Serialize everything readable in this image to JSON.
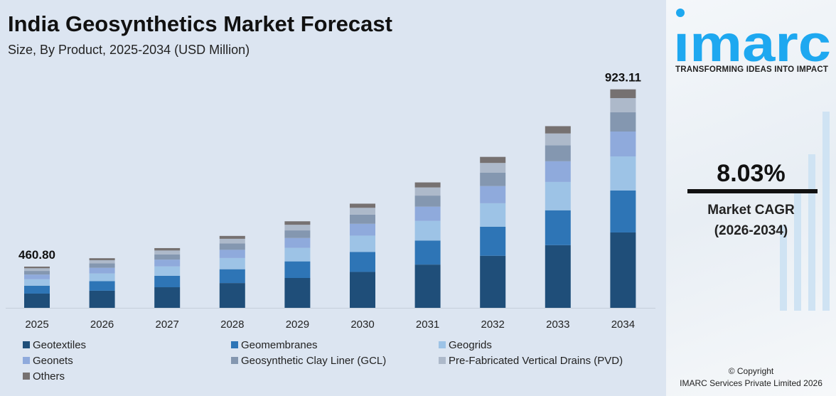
{
  "chart_data": {
    "type": "bar",
    "stacked": true,
    "title": "India Geosynthetics Market Forecast",
    "subtitle": "Size, By Product, 2025-2034 (USD Million)",
    "categories": [
      "2025",
      "2026",
      "2027",
      "2028",
      "2029",
      "2030",
      "2031",
      "2032",
      "2033",
      "2034"
    ],
    "series": [
      {
        "name": "Geotextiles",
        "color": "#1f4e79",
        "values": [
          159.0,
          171.7,
          185.5,
          200.4,
          216.5,
          233.9,
          252.7,
          273.0,
          294.9,
          318.5
        ]
      },
      {
        "name": "Geomembranes",
        "color": "#2e75b6",
        "values": [
          88.5,
          95.6,
          103.3,
          111.6,
          120.5,
          130.2,
          140.6,
          151.9,
          164.1,
          177.2
        ]
      },
      {
        "name": "Geogrids",
        "color": "#9dc3e6",
        "values": [
          71.9,
          77.7,
          83.9,
          90.6,
          97.9,
          105.8,
          114.3,
          123.4,
          133.3,
          144.0
        ]
      },
      {
        "name": "Geonets",
        "color": "#8faadc",
        "values": [
          52.5,
          56.7,
          61.3,
          66.2,
          71.5,
          77.3,
          83.5,
          90.2,
          97.4,
          105.2
        ]
      },
      {
        "name": "Geosynthetic Clay Liner (GCL)",
        "color": "#8497b0",
        "values": [
          40.6,
          43.8,
          47.3,
          51.1,
          55.2,
          59.7,
          64.5,
          69.6,
          75.2,
          81.2
        ]
      },
      {
        "name": "Pre-Fabricated Vertical Drains (PVD)",
        "color": "#adb9ca",
        "values": [
          30.0,
          32.4,
          35.0,
          37.8,
          40.8,
          44.1,
          47.6,
          51.4,
          55.6,
          60.0
        ]
      },
      {
        "name": "Others",
        "color": "#767171",
        "values": [
          18.3,
          19.9,
          21.5,
          23.3,
          25.2,
          27.0,
          29.3,
          31.8,
          34.3,
          37.01
        ]
      }
    ],
    "data_labels": {
      "2025": "460.80",
      "2034": "923.11"
    },
    "grid": false,
    "legend": "bottom"
  },
  "brand": {
    "name": "imarc",
    "tagline": "TRANSFORMING IDEAS INTO IMPACT",
    "color": "#1ea8f0"
  },
  "cagr": {
    "value": "8.03%",
    "label": "Market CAGR",
    "period": "(2026-2034)"
  },
  "copyright": {
    "line1": "© Copyright",
    "line2": "IMARC Services Private Limited 2026"
  }
}
